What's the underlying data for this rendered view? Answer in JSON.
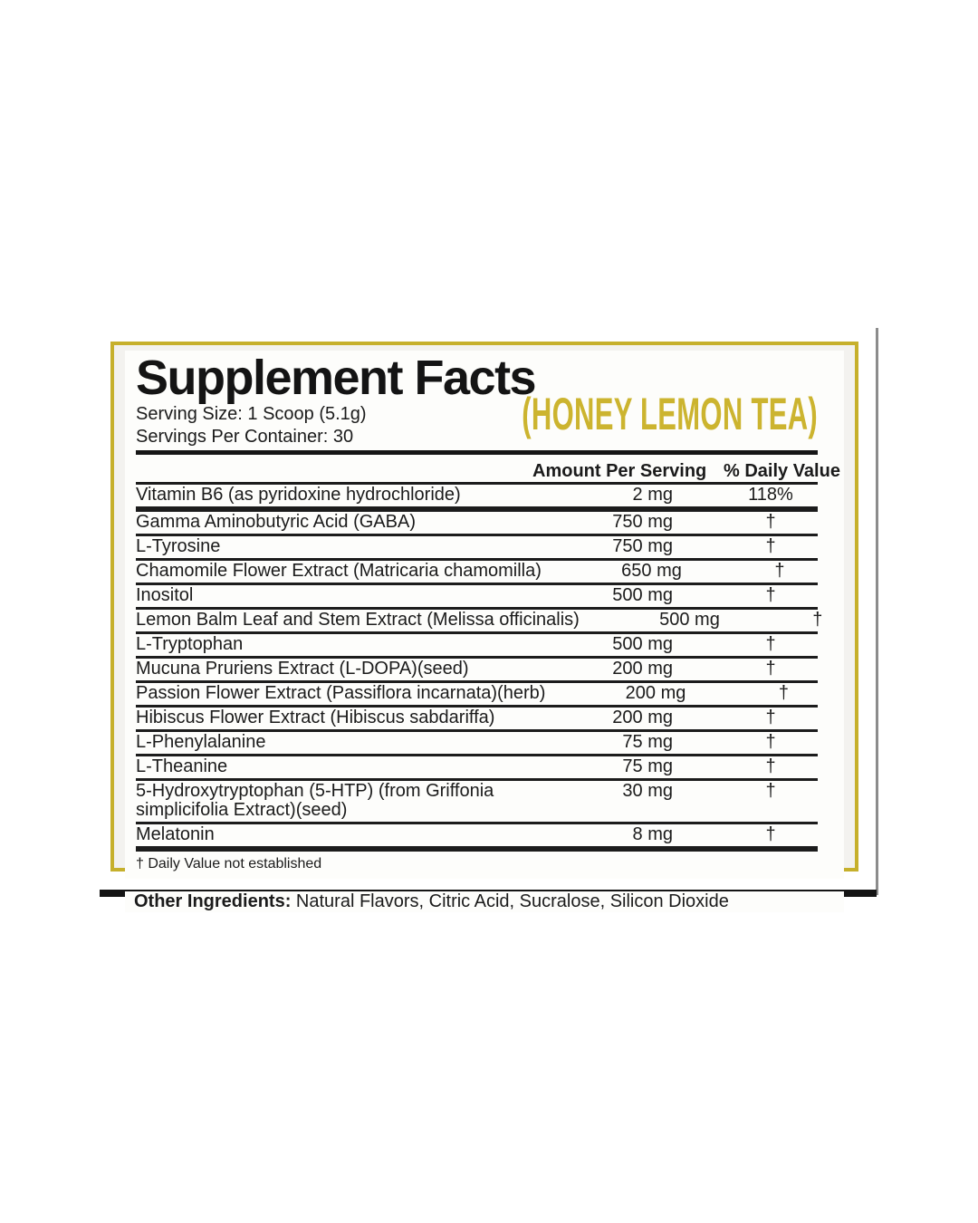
{
  "label": {
    "title": "Supplement Facts",
    "serving_size": "Serving Size: 1 Scoop (5.1g)",
    "servings_per_container": "Servings Per Container: 30",
    "flavor": "(HONEY LEMON TEA)",
    "columns": {
      "amount": "Amount Per Serving",
      "daily_value": "% Daily Value"
    },
    "rows": [
      {
        "name": "Vitamin B6 (as pyridoxine hydrochloride)",
        "amount": "2 mg",
        "dv": "118%"
      },
      {
        "name": "Gamma Aminobutyric Acid (GABA)",
        "amount": "750 mg",
        "dv": "†"
      },
      {
        "name": "L-Tyrosine",
        "amount": "750 mg",
        "dv": "†"
      },
      {
        "name": "Chamomile Flower Extract (Matricaria chamomilla)",
        "amount": "650 mg",
        "dv": "†"
      },
      {
        "name": "Inositol",
        "amount": "500 mg",
        "dv": "†"
      },
      {
        "name": "Lemon Balm Leaf and Stem Extract (Melissa officinalis)",
        "amount": "500 mg",
        "dv": "†"
      },
      {
        "name": "L-Tryptophan",
        "amount": "500 mg",
        "dv": "†"
      },
      {
        "name": "Mucuna Pruriens Extract (L-DOPA)(seed)",
        "amount": "200 mg",
        "dv": "†"
      },
      {
        "name": "Passion Flower Extract (Passiflora incarnata)(herb)",
        "amount": "200 mg",
        "dv": "†"
      },
      {
        "name": "Hibiscus Flower Extract (Hibiscus sabdariffa)",
        "amount": "200 mg",
        "dv": "†"
      },
      {
        "name": "L-Phenylalanine",
        "amount": "75 mg",
        "dv": "†"
      },
      {
        "name": "L-Theanine",
        "amount": "75 mg",
        "dv": "†"
      },
      {
        "name": "5-Hydroxytryptophan (5-HTP) (from Griffonia simplicifolia Extract)(seed)",
        "amount": "30 mg",
        "dv": "†"
      },
      {
        "name": "Melatonin",
        "amount": "8 mg",
        "dv": "†"
      }
    ],
    "footnote": "† Daily Value not established",
    "other_ingredients_label": "Other Ingredients:",
    "other_ingredients_text": " Natural Flavors, Citric Acid, Sucralose, Silicon Dioxide",
    "colors": {
      "gold_border": "#c6b02c",
      "gold_text": "#ccb42f"
    }
  }
}
